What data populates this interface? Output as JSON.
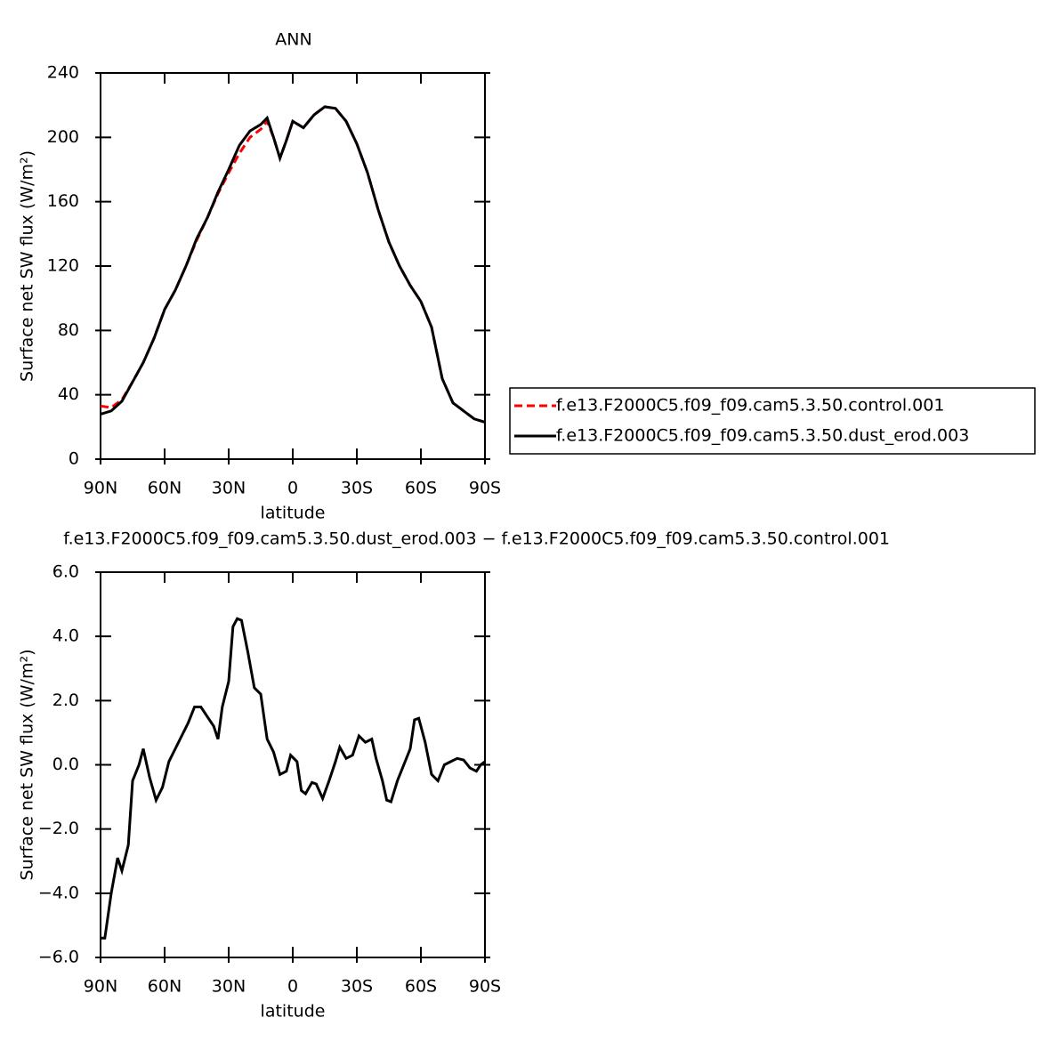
{
  "chart_data": [
    {
      "type": "line",
      "title": "ANN",
      "x_label": "latitude",
      "y_label": "Surface net SW flux (W/m²)",
      "xlim": [
        90,
        -90
      ],
      "ylim": [
        0,
        240
      ],
      "xticks": [
        {
          "value": 90,
          "label": "90N"
        },
        {
          "value": 60,
          "label": "60N"
        },
        {
          "value": 30,
          "label": "30N"
        },
        0,
        {
          "value": -30,
          "label": "30S"
        },
        {
          "value": -60,
          "label": "60S"
        },
        {
          "value": -90,
          "label": "90S"
        }
      ],
      "yticks": [
        0,
        40,
        80,
        120,
        160,
        200,
        240
      ],
      "x": [
        90,
        85,
        80,
        75,
        70,
        65,
        60,
        55,
        50,
        45,
        40,
        35,
        30,
        25,
        20,
        15,
        12,
        9,
        6,
        3,
        0,
        -5,
        -10,
        -15,
        -20,
        -25,
        -30,
        -35,
        -40,
        -45,
        -50,
        -55,
        -60,
        -65,
        -70,
        -75,
        -80,
        -85,
        -90
      ],
      "legend": "outside-right",
      "series": [
        {
          "name": "f.e13.F2000C5.f09_f09.cam5.3.50.control.001",
          "color": "#ff0000",
          "dash": true,
          "values": [
            33,
            32,
            37,
            48,
            60,
            75,
            93,
            105,
            120,
            136,
            150,
            165,
            178,
            190,
            200,
            205,
            210,
            200,
            187,
            198,
            210,
            206,
            214,
            219,
            218,
            210,
            196,
            178,
            155,
            135,
            120,
            108,
            98,
            82,
            50,
            35,
            30,
            25,
            23
          ]
        },
        {
          "name": "f.e13.F2000C5.f09_f09.cam5.3.50.dust_erod.003",
          "color": "#000000",
          "dash": false,
          "values": [
            28,
            30,
            36,
            48,
            60,
            75,
            93,
            105,
            120,
            137,
            150,
            166,
            180,
            195,
            204,
            208,
            212,
            200,
            187,
            198,
            210,
            206,
            214,
            219,
            218,
            210,
            196,
            178,
            155,
            135,
            120,
            108,
            98,
            82,
            50,
            35,
            30,
            25,
            23
          ]
        }
      ]
    },
    {
      "type": "line",
      "title": "f.e13.F2000C5.f09_f09.cam5.3.50.dust_erod.003 − f.e13.F2000C5.f09_f09.cam5.3.50.control.001",
      "x_label": "latitude",
      "y_label": "Surface net SW flux (W/m²)",
      "xlim": [
        90,
        -90
      ],
      "ylim": [
        -6,
        6
      ],
      "xticks": [
        {
          "value": 90,
          "label": "90N"
        },
        {
          "value": 60,
          "label": "60N"
        },
        {
          "value": 30,
          "label": "30N"
        },
        0,
        {
          "value": -30,
          "label": "30S"
        },
        {
          "value": -60,
          "label": "60S"
        },
        {
          "value": -90,
          "label": "90S"
        }
      ],
      "yticks": [
        {
          "value": -6,
          "label": "−6.0"
        },
        {
          "value": -4,
          "label": "−4.0"
        },
        {
          "value": -2,
          "label": "−2.0"
        },
        {
          "value": 0,
          "label": "0.0"
        },
        {
          "value": 2,
          "label": "2.0"
        },
        {
          "value": 4,
          "label": "4.0"
        },
        {
          "value": 6,
          "label": "6.0"
        }
      ],
      "x": [
        90,
        88,
        85,
        82,
        80,
        77,
        75,
        72,
        70,
        67,
        64,
        61,
        58,
        55,
        52,
        49,
        46,
        43,
        40,
        37,
        35,
        33,
        30,
        28,
        26,
        24,
        21,
        18,
        15,
        12,
        9,
        6,
        3,
        1,
        -2,
        -4,
        -6,
        -9,
        -11,
        -14,
        -17,
        -20,
        -22,
        -25,
        -28,
        -31,
        -34,
        -37,
        -39,
        -42,
        -44,
        -46,
        -49,
        -52,
        -55,
        -57,
        -59,
        -62,
        -65,
        -68,
        -71,
        -74,
        -77,
        -80,
        -83,
        -86,
        -88,
        -90
      ],
      "series": [
        {
          "color": "#000000",
          "values": [
            -5.4,
            -5.4,
            -4,
            -2.9,
            -3.3,
            -2.5,
            -0.5,
            0,
            0.5,
            -0.4,
            -1.1,
            -0.7,
            0.1,
            0.5,
            0.9,
            1.3,
            1.8,
            1.8,
            1.5,
            1.2,
            0.8,
            1.8,
            2.6,
            4.3,
            4.55,
            4.5,
            3.5,
            2.4,
            2.2,
            0.8,
            0.4,
            -0.3,
            -0.2,
            0.3,
            0.1,
            -0.8,
            -0.9,
            -0.55,
            -0.6,
            -1.05,
            -0.5,
            0.1,
            0.55,
            0.2,
            0.3,
            0.9,
            0.7,
            0.8,
            0.2,
            -0.5,
            -1.1,
            -1.15,
            -0.5,
            0,
            0.5,
            1.4,
            1.45,
            0.7,
            -0.3,
            -0.5,
            0,
            0.1,
            0.2,
            0.15,
            -0.1,
            -0.2,
            0,
            0.1
          ]
        }
      ]
    }
  ]
}
